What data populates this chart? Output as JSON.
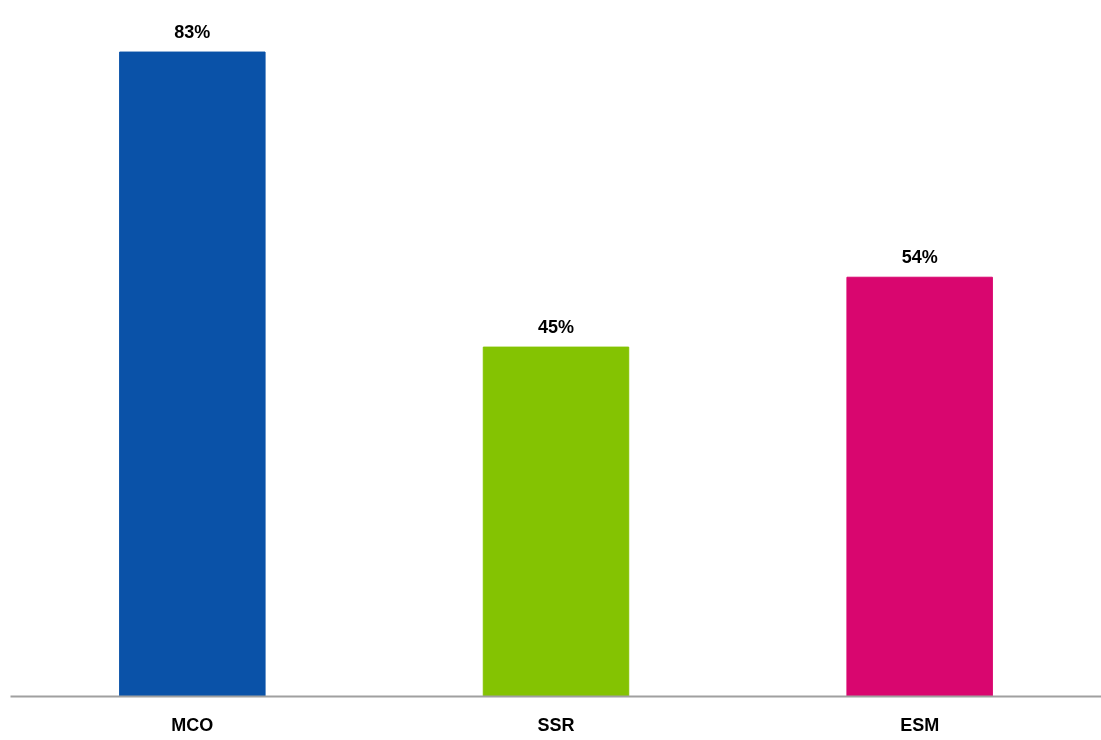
{
  "chart_data": {
    "type": "bar",
    "categories": [
      "MCO",
      "SSR",
      "ESM"
    ],
    "values": [
      83,
      45,
      54
    ],
    "colors": [
      "#0a52a8",
      "#84c302",
      "#d9066f"
    ],
    "value_labels": [
      "83%",
      "45%",
      "54%"
    ]
  }
}
